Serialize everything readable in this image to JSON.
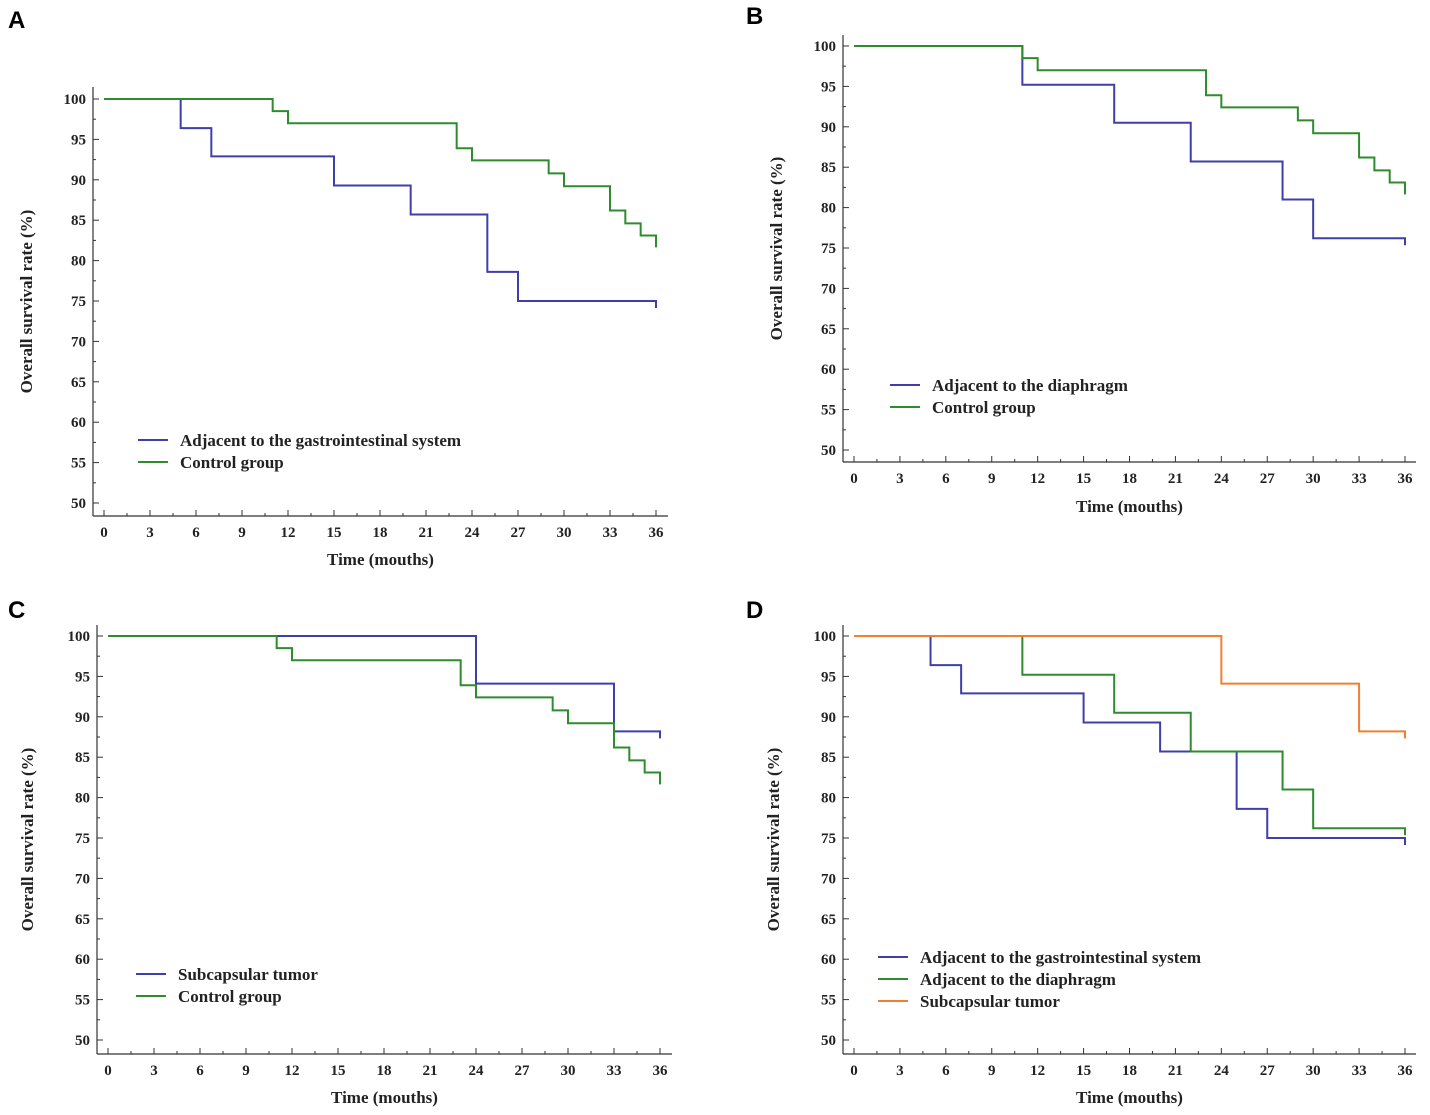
{
  "colors": {
    "blue": "#3f3fa9",
    "green": "#2e8b2e",
    "orange": "#f08030"
  },
  "chart_data": [
    {
      "panel": "A",
      "type": "line",
      "step": true,
      "title": "",
      "xlabel": "Time (mouths)",
      "ylabel": "Overall survival rate (%)",
      "xlim": [
        0,
        36
      ],
      "ylim": [
        50,
        100
      ],
      "xticks": [
        "0",
        "3",
        "6",
        "9",
        "12",
        "15",
        "18",
        "21",
        "24",
        "27",
        "30",
        "33",
        "36"
      ],
      "yticks": [
        "50",
        "55",
        "60",
        "65",
        "70",
        "75",
        "80",
        "85",
        "90",
        "95",
        "100"
      ],
      "legend_position": "bottom-left",
      "series": [
        {
          "name": "Adjacent to the gastrointestinal system",
          "color": "blue",
          "x": [
            0,
            5,
            7,
            15,
            20,
            25,
            27,
            36
          ],
          "y": [
            100,
            96.4,
            92.9,
            89.3,
            85.7,
            78.6,
            75.0,
            75.0
          ]
        },
        {
          "name": "Control group",
          "color": "green",
          "x": [
            0,
            11,
            12,
            23,
            24,
            29,
            30,
            33,
            34,
            35,
            36
          ],
          "y": [
            100,
            98.5,
            97.0,
            93.9,
            92.4,
            90.8,
            89.2,
            86.2,
            84.6,
            83.1,
            82.5
          ]
        }
      ]
    },
    {
      "panel": "B",
      "type": "line",
      "step": true,
      "title": "",
      "xlabel": "Time (mouths)",
      "ylabel": "Overall survival rate (%)",
      "xlim": [
        0,
        36
      ],
      "ylim": [
        50,
        100
      ],
      "xticks": [
        "0",
        "3",
        "6",
        "9",
        "12",
        "15",
        "18",
        "21",
        "24",
        "27",
        "30",
        "33",
        "36"
      ],
      "yticks": [
        "50",
        "55",
        "60",
        "65",
        "70",
        "75",
        "80",
        "85",
        "90",
        "95",
        "100"
      ],
      "legend_position": "bottom-left",
      "series": [
        {
          "name": "Adjacent to the diaphragm",
          "color": "blue",
          "x": [
            0,
            11,
            17,
            22,
            28,
            30,
            36
          ],
          "y": [
            100,
            95.2,
            90.5,
            85.7,
            81.0,
            76.2,
            76.2
          ]
        },
        {
          "name": "Control group",
          "color": "green",
          "x": [
            0,
            11,
            12,
            23,
            24,
            29,
            30,
            33,
            34,
            35,
            36
          ],
          "y": [
            100,
            98.5,
            97.0,
            93.9,
            92.4,
            90.8,
            89.2,
            86.2,
            84.6,
            83.1,
            82.5
          ]
        }
      ]
    },
    {
      "panel": "C",
      "type": "line",
      "step": true,
      "title": "",
      "xlabel": "Time (mouths)",
      "ylabel": "Overall survival rate (%)",
      "xlim": [
        0,
        36
      ],
      "ylim": [
        50,
        100
      ],
      "xticks": [
        "0",
        "3",
        "6",
        "9",
        "12",
        "15",
        "18",
        "21",
        "24",
        "27",
        "30",
        "33",
        "36"
      ],
      "yticks": [
        "50",
        "55",
        "60",
        "65",
        "70",
        "75",
        "80",
        "85",
        "90",
        "95",
        "100"
      ],
      "legend_position": "bottom-left",
      "series": [
        {
          "name": "Subcapsular tumor",
          "color": "blue",
          "x": [
            0,
            24,
            33,
            36
          ],
          "y": [
            100,
            94.1,
            88.2,
            88.2
          ]
        },
        {
          "name": "Control group",
          "color": "green",
          "x": [
            0,
            11,
            12,
            23,
            24,
            29,
            30,
            33,
            34,
            35,
            36
          ],
          "y": [
            100,
            98.5,
            97.0,
            93.9,
            92.4,
            90.8,
            89.2,
            86.2,
            84.6,
            83.1,
            82.5
          ]
        }
      ]
    },
    {
      "panel": "D",
      "type": "line",
      "step": true,
      "title": "",
      "xlabel": "Time (mouths)",
      "ylabel": "Overall survival rate (%)",
      "xlim": [
        0,
        36
      ],
      "ylim": [
        50,
        100
      ],
      "xticks": [
        "0",
        "3",
        "6",
        "9",
        "12",
        "15",
        "18",
        "21",
        "24",
        "27",
        "30",
        "33",
        "36"
      ],
      "yticks": [
        "50",
        "55",
        "60",
        "65",
        "70",
        "75",
        "80",
        "85",
        "90",
        "95",
        "100"
      ],
      "legend_position": "bottom-left",
      "series": [
        {
          "name": "Adjacent to the gastrointestinal system",
          "color": "blue",
          "x": [
            0,
            5,
            7,
            15,
            20,
            25,
            27,
            36
          ],
          "y": [
            100,
            96.4,
            92.9,
            89.3,
            85.7,
            78.6,
            75.0,
            75.0
          ]
        },
        {
          "name": "Adjacent to the diaphragm",
          "color": "green",
          "x": [
            0,
            11,
            17,
            22,
            28,
            30,
            36
          ],
          "y": [
            100,
            95.2,
            90.5,
            85.7,
            81.0,
            76.2,
            76.2
          ]
        },
        {
          "name": "Subcapsular tumor",
          "color": "orange",
          "x": [
            0,
            24,
            33,
            36
          ],
          "y": [
            100,
            94.1,
            88.2,
            88.2
          ]
        }
      ]
    }
  ]
}
